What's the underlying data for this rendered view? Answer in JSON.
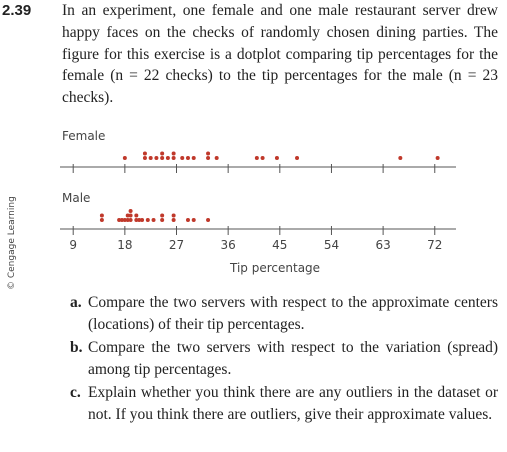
{
  "exercise": {
    "number": "2.39",
    "text": "In an experiment, one female and one male restaurant server drew happy faces on the checks of randomly chosen dining parties. The figure for this exercise is a dotplot comparing tip percentages for the female (n = 22 checks) to the tip percentages for the male (n = 23 checks).",
    "figure": {
      "type": "dotplot",
      "series": [
        {
          "name": "Female",
          "values": [
            18,
            21.5,
            21.5,
            22.5,
            23.5,
            24.5,
            24.5,
            25.5,
            26.5,
            26.5,
            28,
            29,
            30,
            32.5,
            32.5,
            34,
            41,
            42,
            44.5,
            48,
            66,
            72.5
          ]
        },
        {
          "name": "Male",
          "values": [
            14,
            14,
            17,
            17.5,
            18,
            18.5,
            18.5,
            19,
            19,
            19,
            20,
            20,
            20.5,
            21,
            22,
            23,
            24.5,
            24.5,
            26.5,
            26.5,
            29,
            30,
            32.5
          ]
        }
      ],
      "color": "#c0392b",
      "xlabel": "Tip percentage",
      "xlim": [
        6.7,
        75.7
      ],
      "xticks": [
        9,
        18,
        27,
        36,
        45,
        54,
        63,
        72
      ],
      "credit": "© Cengage Learning"
    },
    "parts": [
      {
        "label": "a.",
        "text": "Compare the two servers with respect to the approximate centers (locations) of their tip percentages."
      },
      {
        "label": "b.",
        "text": "Compare the two servers with respect to the variation (spread) among tip percentages."
      },
      {
        "label": "c.",
        "text": "Explain whether you think there are any outliers in the dataset or not. If you think there are outliers, give their approximate values."
      }
    ]
  }
}
